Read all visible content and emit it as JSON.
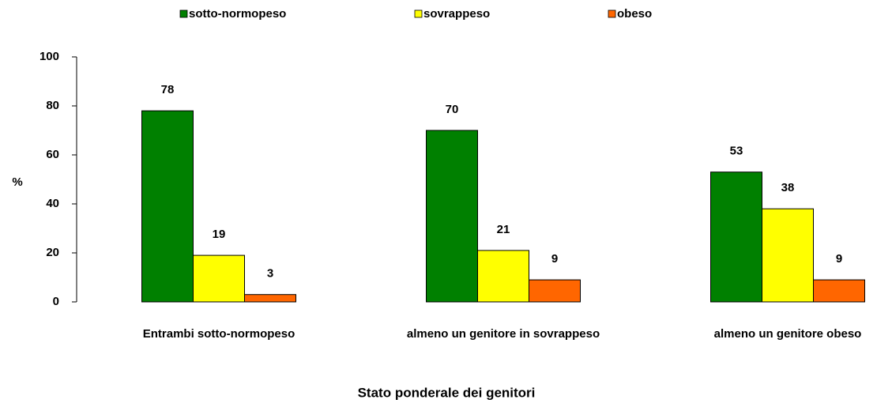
{
  "chart_data": {
    "type": "bar",
    "categories": [
      "Entrambi sotto-normopeso",
      "almeno un genitore in sovrappeso",
      "almeno un genitore obeso"
    ],
    "series": [
      {
        "name": "sotto-normopeso",
        "color": "#008000",
        "values": [
          78,
          70,
          53
        ]
      },
      {
        "name": "sovrappeso",
        "color": "#ffff00",
        "values": [
          19,
          21,
          38
        ]
      },
      {
        "name": "obeso",
        "color": "#ff6600",
        "values": [
          3,
          9,
          9
        ]
      }
    ],
    "ylim": [
      0,
      100
    ],
    "yticks": [
      0,
      20,
      40,
      60,
      80,
      100
    ],
    "y_label": "%",
    "x_label": "Stato ponderale dei genitori"
  }
}
